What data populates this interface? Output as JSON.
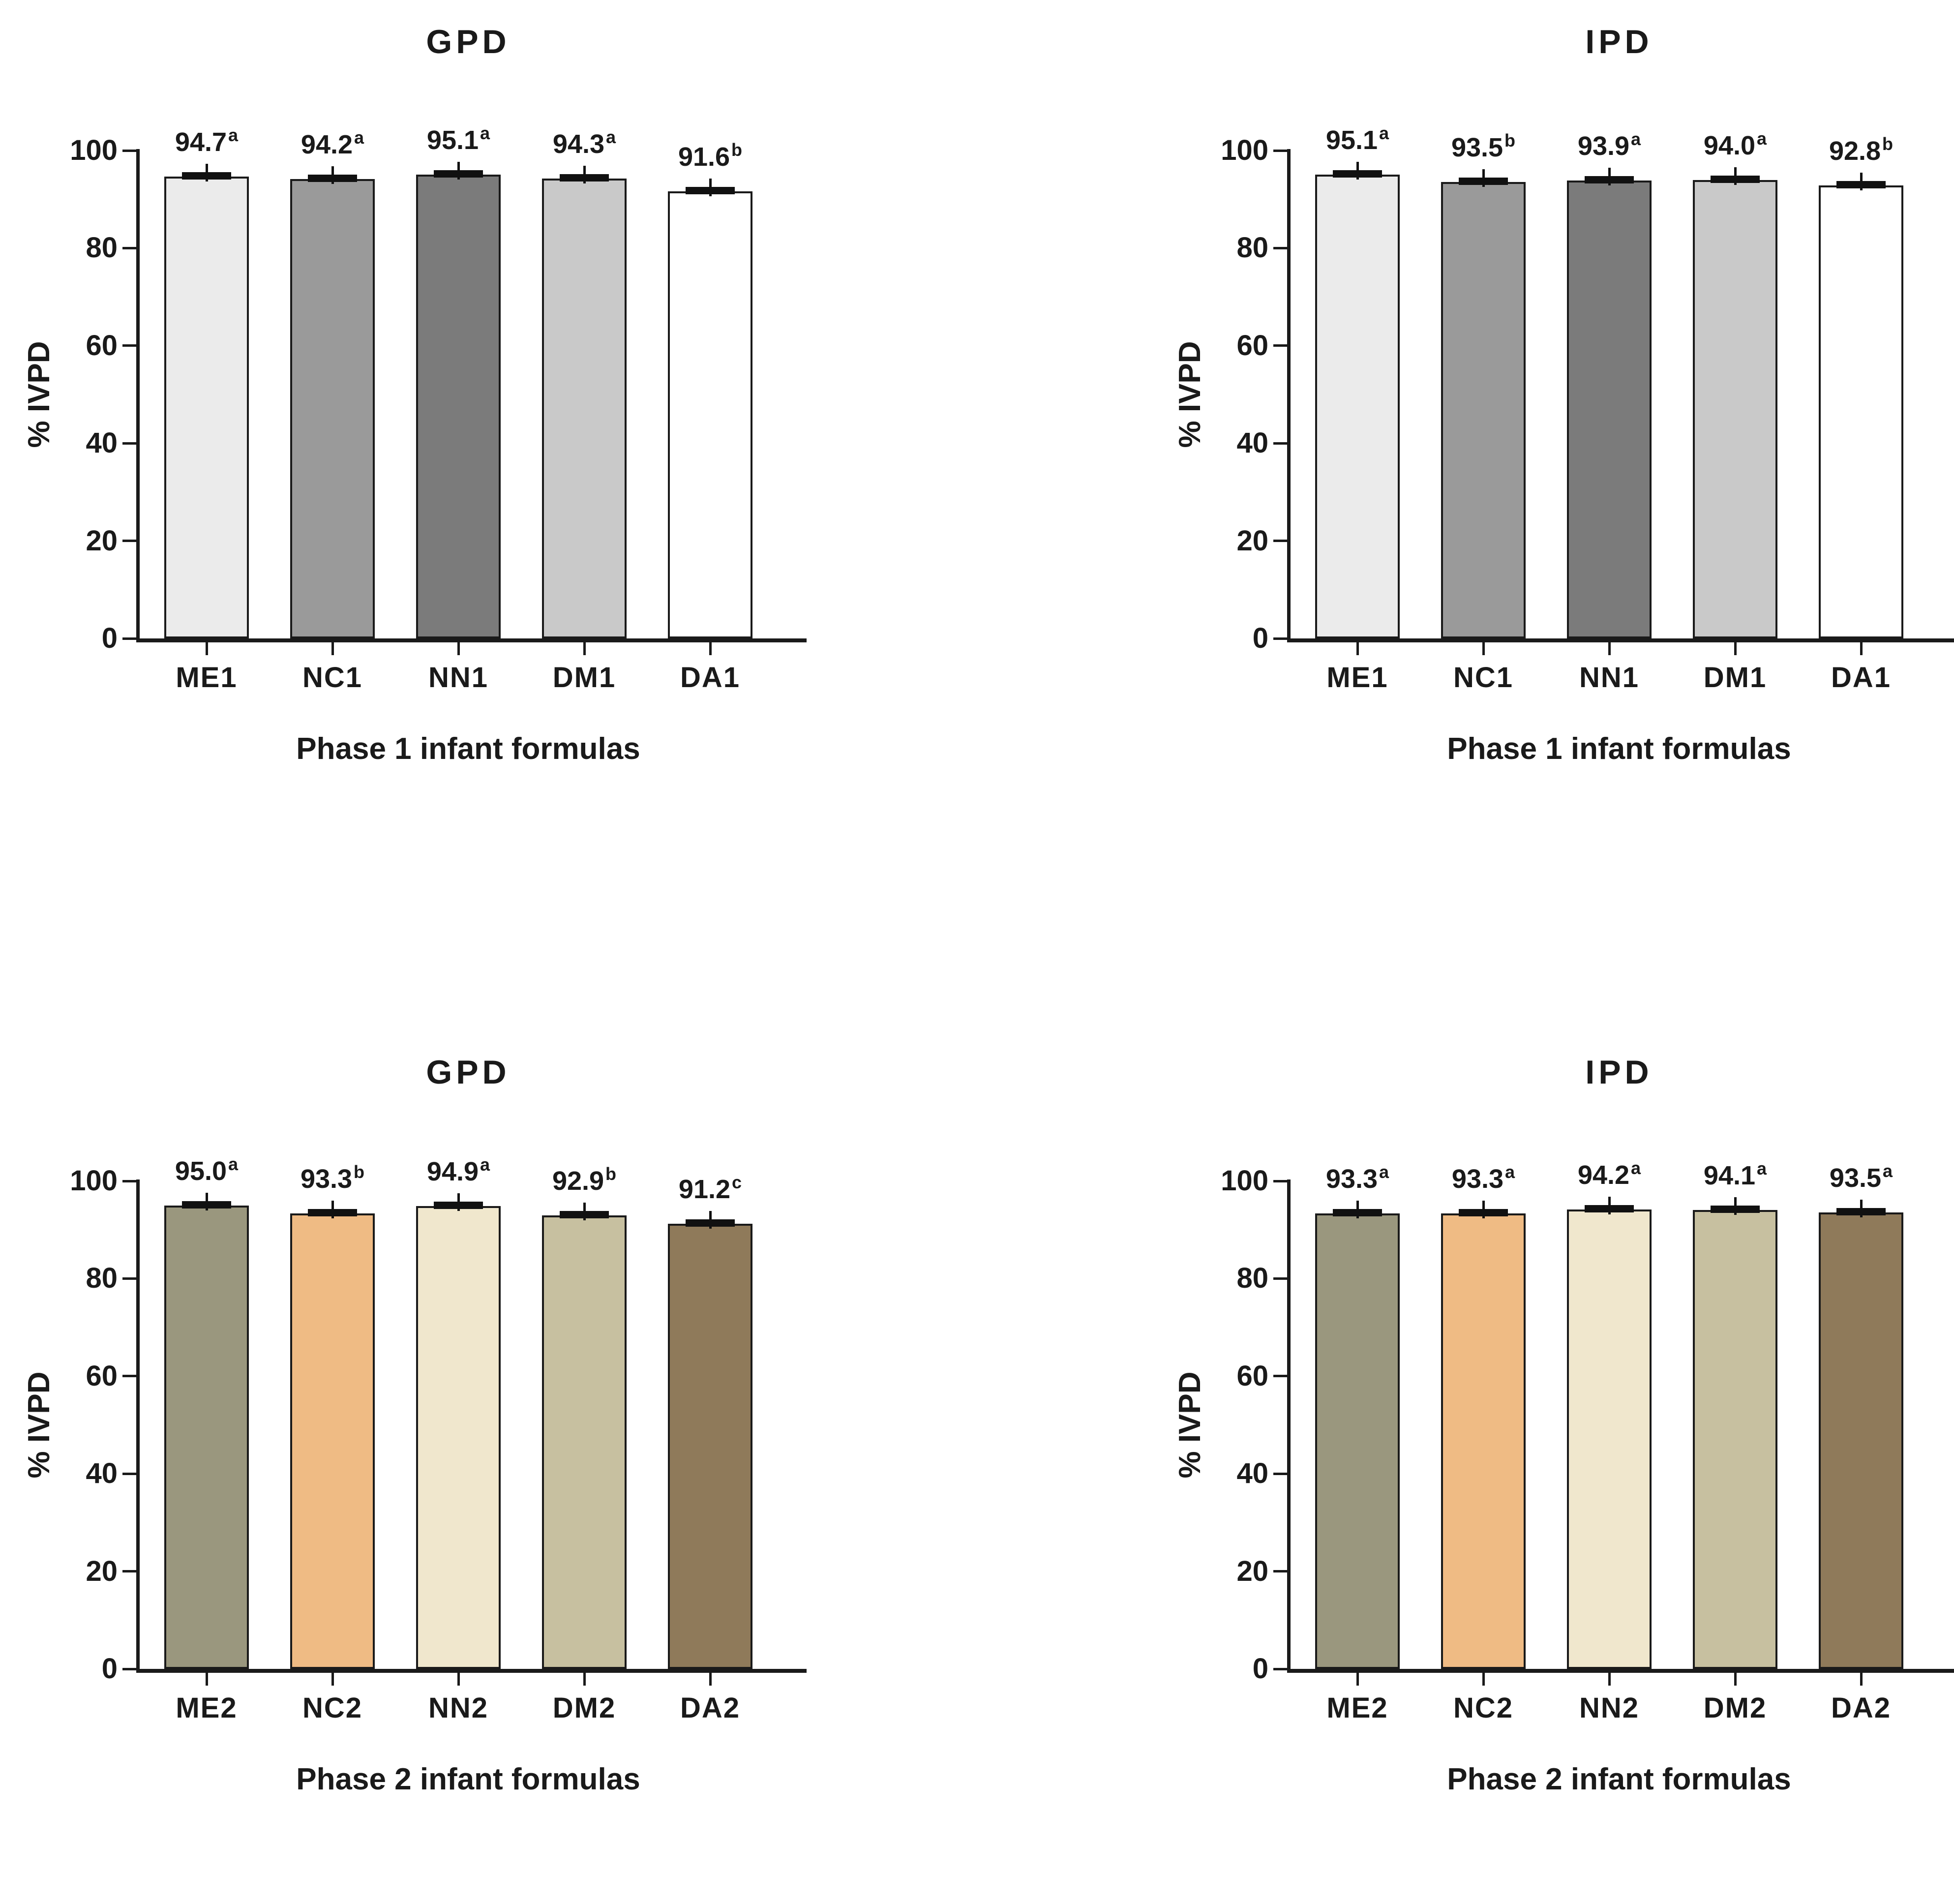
{
  "figure": {
    "background": "#ffffff",
    "text_color": "#1a1a1a",
    "axis_color": "#1a1a1a",
    "error_cap_color": "#111111",
    "description_titles": [
      "GPD",
      "IPD",
      "GPD",
      "IPD"
    ]
  },
  "chart_data": [
    {
      "id": "gpd-phase1",
      "type": "bar",
      "title": "GPD",
      "xlabel": "Phase 1 infant formulas",
      "ylabel": "% IVPD",
      "ylim": [
        0,
        100
      ],
      "y_ticks": [
        0,
        20,
        40,
        60,
        80,
        100
      ],
      "grid": false,
      "legend": false,
      "error_caps": true,
      "categories": [
        "ME1",
        "NC1",
        "NN1",
        "DM1",
        "DA1"
      ],
      "values": [
        94.7,
        94.2,
        95.1,
        94.3,
        91.6
      ],
      "sig_letters": [
        "a",
        "a",
        "a",
        "a",
        "b"
      ],
      "bar_colors": [
        "#ebebeb",
        "#9a9a9a",
        "#7b7b7b",
        "#c9c9c9",
        "#ffffff"
      ],
      "bar_border_color": "#1a1a1a"
    },
    {
      "id": "ipd-phase1",
      "type": "bar",
      "title": "IPD",
      "xlabel": "Phase 1 infant formulas",
      "ylabel": "% IVPD",
      "ylim": [
        0,
        100
      ],
      "y_ticks": [
        0,
        20,
        40,
        60,
        80,
        100
      ],
      "grid": false,
      "legend": false,
      "error_caps": true,
      "categories": [
        "ME1",
        "NC1",
        "NN1",
        "DM1",
        "DA1"
      ],
      "values": [
        95.1,
        93.5,
        93.9,
        94.0,
        92.8
      ],
      "sig_letters": [
        "a",
        "b",
        "a",
        "a",
        "b"
      ],
      "bar_colors": [
        "#ebebeb",
        "#9a9a9a",
        "#7b7b7b",
        "#c9c9c9",
        "#ffffff"
      ],
      "bar_border_color": "#1a1a1a"
    },
    {
      "id": "gpd-phase2",
      "type": "bar",
      "title": "GPD",
      "xlabel": "Phase 2 infant formulas",
      "ylabel": "% IVPD",
      "ylim": [
        0,
        100
      ],
      "y_ticks": [
        0,
        20,
        40,
        60,
        80,
        100
      ],
      "grid": false,
      "legend": false,
      "error_caps": true,
      "categories": [
        "ME2",
        "NC2",
        "NN2",
        "DM2",
        "DA2"
      ],
      "values": [
        95.0,
        93.3,
        94.9,
        92.9,
        91.2
      ],
      "sig_letters": [
        "a",
        "b",
        "a",
        "b",
        "c"
      ],
      "bar_colors": [
        "#9a977e",
        "#efbb84",
        "#f0e7cd",
        "#c7c0a0",
        "#8f7a5a"
      ],
      "bar_border_color": "#1a1a1a"
    },
    {
      "id": "ipd-phase2",
      "type": "bar",
      "title": "IPD",
      "xlabel": "Phase 2 infant formulas",
      "ylabel": "% IVPD",
      "ylim": [
        0,
        100
      ],
      "y_ticks": [
        0,
        20,
        40,
        60,
        80,
        100
      ],
      "grid": false,
      "legend": false,
      "error_caps": true,
      "categories": [
        "ME2",
        "NC2",
        "NN2",
        "DM2",
        "DA2"
      ],
      "values": [
        93.3,
        93.3,
        94.2,
        94.1,
        93.5
      ],
      "sig_letters": [
        "a",
        "a",
        "a",
        "a",
        "a"
      ],
      "bar_colors": [
        "#9a977e",
        "#efbb84",
        "#f0e7cd",
        "#c7c0a0",
        "#8f7a5a"
      ],
      "bar_border_color": "#1a1a1a"
    }
  ]
}
